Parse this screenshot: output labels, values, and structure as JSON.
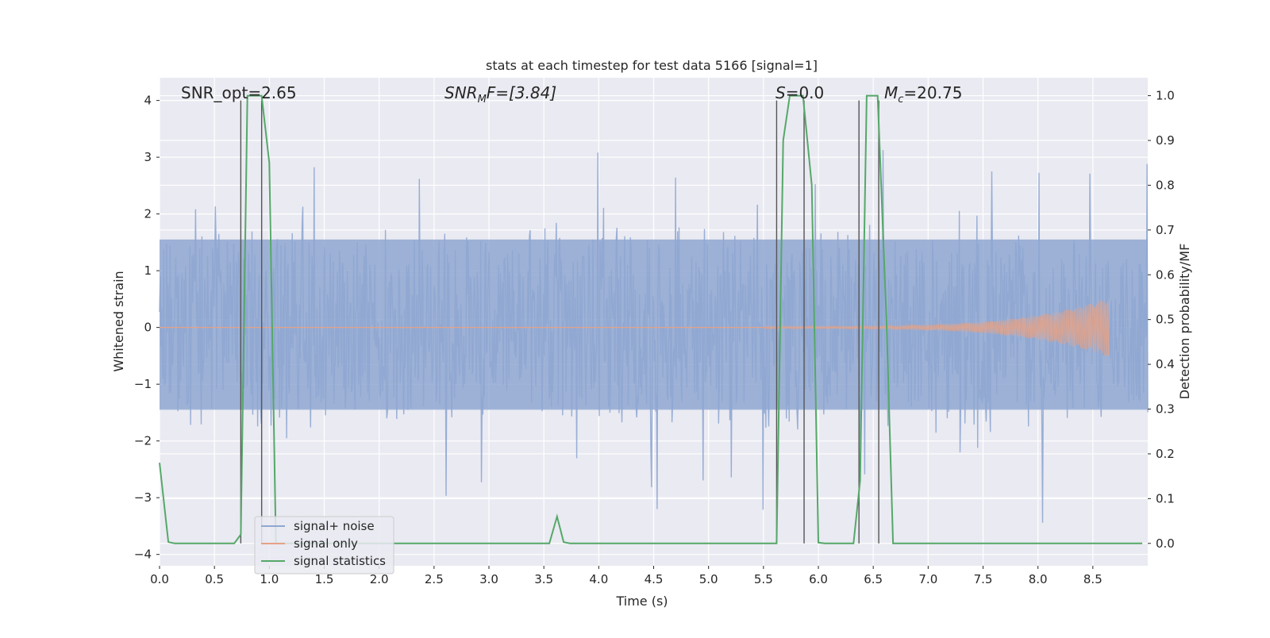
{
  "chart_data": {
    "type": "line",
    "title": "stats at each timestep for test data 5166 [signal=1]",
    "xlabel": "Time (s)",
    "ylabel": "Whitened strain",
    "ylabel_right": "Detection probability/MF",
    "xlim": [
      0,
      9.0
    ],
    "ylim": [
      -4.2,
      4.4
    ],
    "ylim_right": [
      -0.05,
      1.04
    ],
    "xticks": [
      0.0,
      0.5,
      1.0,
      1.5,
      2.0,
      2.5,
      3.0,
      3.5,
      4.0,
      4.5,
      5.0,
      5.5,
      6.0,
      6.5,
      7.0,
      7.5,
      8.0,
      8.5
    ],
    "xtick_labels": [
      "0.0",
      "0.5",
      "1.0",
      "1.5",
      "2.0",
      "2.5",
      "3.0",
      "3.5",
      "4.0",
      "4.5",
      "5.0",
      "5.5",
      "6.0",
      "6.5",
      "7.0",
      "7.5",
      "8.0",
      "8.5"
    ],
    "yticks": [
      -4,
      -3,
      -2,
      -1,
      0,
      1,
      2,
      3,
      4
    ],
    "ytick_labels": [
      "−4",
      "−3",
      "−2",
      "−1",
      "0",
      "1",
      "2",
      "3",
      "4"
    ],
    "yticks_right": [
      0.0,
      0.1,
      0.2,
      0.3,
      0.4,
      0.5,
      0.6,
      0.7,
      0.8,
      0.9,
      1.0
    ],
    "ytick_labels_right": [
      "0.0",
      "0.1",
      "0.2",
      "0.3",
      "0.4",
      "0.5",
      "0.6",
      "0.7",
      "0.8",
      "0.9",
      "1.0"
    ],
    "grid": true,
    "legend_position": "lower-left",
    "annotations": {
      "snr_opt": "SNR_opt=2.65",
      "snr_mf_main": "SNR",
      "snr_mf_sub": "M",
      "snr_mf_rest": "F=[3.84]",
      "s_main": "S",
      "s_rest": "=0.0",
      "mc_main": "M",
      "mc_sub": "c",
      "mc_rest": "=20.75"
    },
    "series": [
      {
        "name": "signal+ noise",
        "color": "#8fa7d1",
        "axis": "left",
        "envelope": {
          "x_range": [
            0,
            9.0
          ],
          "typical_abs": 1.7,
          "max": 4.0,
          "min": -3.9
        }
      },
      {
        "name": "signal only",
        "color": "#e5a286",
        "axis": "left",
        "chirp": {
          "x_start": 5.5,
          "x_peak": 8.65,
          "peak_amplitude": 0.5
        }
      },
      {
        "name": "signal statistics",
        "color": "#55a868",
        "axis": "right",
        "points": [
          [
            0.0,
            0.18
          ],
          [
            0.08,
            0.003
          ],
          [
            0.14,
            0.0
          ],
          [
            0.68,
            0.0
          ],
          [
            0.74,
            0.02
          ],
          [
            0.8,
            1.0
          ],
          [
            0.9,
            1.0
          ],
          [
            0.93,
            1.0
          ],
          [
            1.0,
            0.85
          ],
          [
            1.06,
            0.0
          ],
          [
            3.55,
            0.0
          ],
          [
            3.62,
            0.06
          ],
          [
            3.68,
            0.003
          ],
          [
            3.74,
            0.0
          ],
          [
            5.62,
            0.0
          ],
          [
            5.68,
            0.9
          ],
          [
            5.74,
            1.0
          ],
          [
            5.86,
            1.0
          ],
          [
            5.94,
            0.8
          ],
          [
            6.0,
            0.002
          ],
          [
            6.06,
            0.0
          ],
          [
            6.32,
            0.0
          ],
          [
            6.38,
            0.14
          ],
          [
            6.44,
            1.0
          ],
          [
            6.54,
            1.0
          ],
          [
            6.62,
            0.5
          ],
          [
            6.68,
            0.0
          ],
          [
            8.95,
            0.0
          ]
        ]
      }
    ],
    "vertical_lines": [
      0.74,
      0.93,
      5.62,
      5.87,
      6.37,
      6.55
    ]
  },
  "legend": {
    "items": [
      {
        "label": "signal+ noise",
        "color": "#8fa7d1"
      },
      {
        "label": "signal only",
        "color": "#e5a286"
      },
      {
        "label": "signal statistics",
        "color": "#55a868"
      }
    ]
  }
}
